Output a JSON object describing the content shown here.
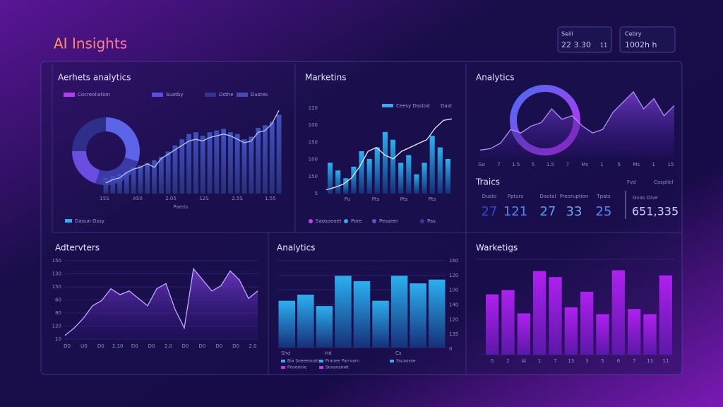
{
  "header": {
    "title": "AI Insights"
  },
  "stats": [
    {
      "label": "Seiil",
      "value": "22 3.30",
      "extra": "11"
    },
    {
      "label": "Cebry",
      "value": "1002h h"
    }
  ],
  "chart_data": [
    {
      "type": "bar",
      "title": "Aerhets analytics",
      "legend": [
        {
          "name": "Cocreoliation",
          "color": "#b43cf0"
        },
        {
          "name": "Suatby",
          "color": "#5a4ee6"
        },
        {
          "name": "Dsthe",
          "color": "#34348e"
        },
        {
          "name": "Dustes",
          "color": "#4a48b8"
        }
      ],
      "donut": {
        "values": [
          30,
          25,
          20,
          25
        ],
        "colors": [
          "#5c64e8",
          "#3b3aa6",
          "#6a4ee0",
          "#2e2f88"
        ]
      },
      "values": [
        18,
        20,
        22,
        24,
        30,
        32,
        35,
        38,
        42,
        48,
        55,
        62,
        68,
        70,
        66,
        70,
        72,
        74,
        70,
        68,
        62,
        65,
        75,
        78,
        82,
        90
      ],
      "line": [
        12,
        16,
        18,
        24,
        28,
        30,
        34,
        30,
        40,
        45,
        50,
        55,
        60,
        62,
        60,
        64,
        66,
        68,
        66,
        62,
        58,
        60,
        70,
        72,
        80,
        95
      ],
      "color": "#3b48b0",
      "x_labels": [
        "15S",
        "A50",
        "2.05",
        "12S",
        "2.5S",
        "1.55"
      ],
      "x_axis_label": "Paeris",
      "footer": "Daoun Dssy"
    },
    {
      "type": "bar",
      "title": "Marketins",
      "legend": [
        {
          "name": "Ceesy Dsstod",
          "color": "#3aa8f0"
        },
        {
          "name": "Dast",
          "color": "#8f8cc8"
        }
      ],
      "y_labels": [
        "120",
        "100",
        "150",
        "100",
        "150",
        "5"
      ],
      "values": [
        40,
        30,
        20,
        35,
        55,
        45,
        60,
        80,
        70,
        40,
        50,
        25,
        40,
        75,
        60,
        45
      ],
      "line": [
        5,
        8,
        12,
        20,
        35,
        55,
        60,
        50,
        45,
        55,
        60,
        65,
        70,
        85,
        95,
        97
      ],
      "color": "#2f9fe6",
      "x_labels": [
        "Pu",
        "Pts",
        "Pts",
        "Pts"
      ],
      "footer": [
        {
          "name": "Saosoeoet",
          "color": "#c040f0"
        },
        {
          "name": "Pore",
          "color": "#3aa8f0"
        },
        {
          "name": "Pesseer",
          "color": "#5a5ac0"
        },
        {
          "name": "Pas",
          "color": "#3a3a90"
        }
      ]
    },
    {
      "type": "line",
      "title": "Analytics",
      "values": [
        10,
        12,
        20,
        40,
        35,
        45,
        50,
        70,
        55,
        60,
        45,
        35,
        40,
        65,
        80,
        95,
        70,
        85,
        60,
        75
      ],
      "x_labels": [
        "Go",
        "7",
        "1.5",
        "5",
        "1.5",
        "7",
        "Ms",
        "1",
        "5",
        "Ms",
        "1",
        "15"
      ],
      "kpi_title": "Traics",
      "kpi_notes": [
        "Fvd",
        "Cospliel"
      ],
      "kpis": [
        {
          "label": "Dusto",
          "value": "27"
        },
        {
          "label": "Ppturs",
          "value": "121"
        },
        {
          "label": "Daotal",
          "value": "27"
        },
        {
          "label": "Preoruption",
          "value": "33"
        },
        {
          "label": "Tpats",
          "value": "25"
        }
      ],
      "total": {
        "label": "Gvas Dive",
        "value": "651,335"
      }
    },
    {
      "type": "line",
      "title": "Adtervters",
      "y_labels": [
        "150",
        "130",
        "150",
        "60",
        "80",
        "120",
        "10"
      ],
      "values": [
        5,
        15,
        28,
        45,
        52,
        68,
        60,
        65,
        55,
        45,
        68,
        75,
        40,
        15,
        95,
        80,
        65,
        72,
        92,
        80,
        55,
        65
      ],
      "x_labels": [
        "D0",
        "U0",
        "D0",
        "2.10",
        "D0",
        "D0",
        "2.0",
        "D0",
        "D0",
        "D0",
        "D0",
        "2.0"
      ]
    },
    {
      "type": "bar",
      "title": "Analytics",
      "y_labels": [
        "160",
        "120",
        "100",
        "140",
        "120",
        "135",
        "0"
      ],
      "values": [
        62,
        70,
        55,
        95,
        88,
        62,
        95,
        85,
        90
      ],
      "x_labels": [
        "Shd",
        "Hd",
        "Cs"
      ],
      "footer": [
        {
          "name": "Bia Soeeeooats",
          "color": "#3aa8f0"
        },
        {
          "name": "Pranee Parrvarn",
          "color": "#3aa8f0"
        },
        {
          "name": "Sscaosse",
          "color": "#3aa8f0"
        },
        {
          "name": "Peoeenie",
          "color": "#b040e0"
        },
        {
          "name": "Seoaosowt",
          "color": "#b040e0"
        }
      ]
    },
    {
      "type": "bar",
      "title": "Warketigs",
      "values": [
        70,
        75,
        48,
        97,
        90,
        55,
        73,
        47,
        98,
        53,
        47,
        92
      ],
      "x_labels": [
        "0",
        "2",
        "Al",
        "1",
        "7",
        "13",
        "3",
        "5",
        "6",
        "7",
        "13",
        "11"
      ]
    }
  ]
}
